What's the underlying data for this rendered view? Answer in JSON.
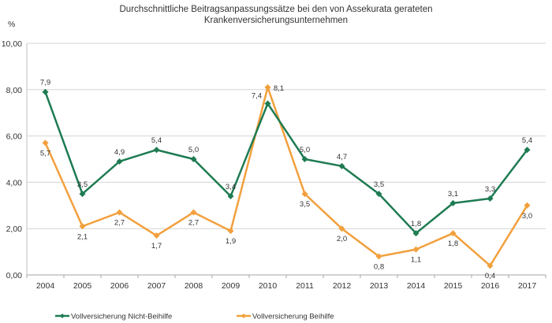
{
  "chart_data": {
    "type": "line",
    "title": "Durchschnittliche Beitragsanpassungssätze bei den von Assekurata gerateten",
    "subtitle": "Krankenversicherungsunternehmen",
    "ylabel": "%",
    "xlabel": "",
    "ylim": [
      0,
      10
    ],
    "yticks": [
      "0,00",
      "2,00",
      "4,00",
      "6,00",
      "8,00",
      "10,00"
    ],
    "ytick_values": [
      0,
      2,
      4,
      6,
      8,
      10
    ],
    "grid": true,
    "legend_position": "bottom",
    "categories": [
      "2004",
      "2005",
      "2006",
      "2007",
      "2008",
      "2009",
      "2010",
      "2011",
      "2012",
      "2013",
      "2014",
      "2015",
      "2016",
      "2017"
    ],
    "series": [
      {
        "name": "Vollversicherung Nicht-Beihilfe",
        "color": "#1e7b52",
        "marker": "diamond",
        "values": [
          7.9,
          3.5,
          4.9,
          5.4,
          5.0,
          3.4,
          7.4,
          5.0,
          4.7,
          3.5,
          1.8,
          3.1,
          3.3,
          5.4
        ],
        "labels": [
          "7,9",
          "3,5",
          "4,9",
          "5,4",
          "5,0",
          "3,4",
          "7,4",
          "5,0",
          "4,7",
          "3,5",
          "1,8",
          "3,1",
          "3,3",
          "5,4"
        ]
      },
      {
        "name": "Vollversicherung Beihilfe",
        "color": "#f2a03d",
        "marker": "diamond",
        "values": [
          5.7,
          2.1,
          2.7,
          1.7,
          2.7,
          1.9,
          8.1,
          3.5,
          2.0,
          0.8,
          1.1,
          1.8,
          0.4,
          3.0
        ],
        "labels": [
          "5,7",
          "2,1",
          "2,7",
          "1,7",
          "2,7",
          "1,9",
          "8,1",
          "3,5",
          "2,0",
          "0,8",
          "1,1",
          "1,8",
          "0,4",
          "3,0"
        ]
      }
    ]
  }
}
